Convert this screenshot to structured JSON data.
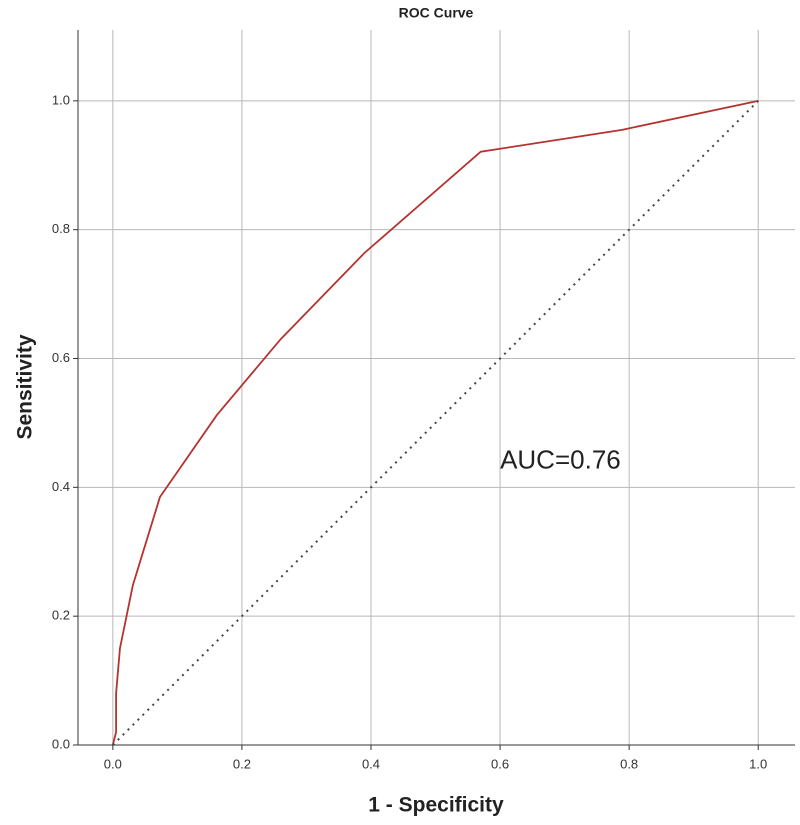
{
  "chart_data": {
    "type": "line",
    "title": "ROC Curve",
    "x_label": "1 - Specificity",
    "y_label": "Sensitivity",
    "annotation": "AUC=0.76",
    "xlim": [
      -0.054,
      1.057
    ],
    "ylim": [
      0,
      1.11
    ],
    "xticks": [
      {
        "value": 0,
        "label": "0.0"
      },
      {
        "value": 0.2,
        "label": "0.2"
      },
      {
        "value": 0.4,
        "label": "0.4"
      },
      {
        "value": 0.6,
        "label": "0.6"
      },
      {
        "value": 0.8,
        "label": "0.8"
      },
      {
        "value": 1,
        "label": "1.0"
      }
    ],
    "yticks": [
      {
        "value": 0,
        "label": "0.0"
      },
      {
        "value": 0.2,
        "label": "0.2"
      },
      {
        "value": 0.4,
        "label": "0.4"
      },
      {
        "value": 0.6,
        "label": "0.6"
      },
      {
        "value": 0.8,
        "label": "0.8"
      },
      {
        "value": 1,
        "label": "1.0"
      }
    ],
    "grid": true,
    "series": [
      {
        "color": "#b5332e",
        "dash": false,
        "x": [
          0,
          0.005,
          0.005,
          0.011,
          0.031,
          0.073,
          0.161,
          0.26,
          0.39,
          0.57,
          0.789,
          1
        ],
        "values": [
          0,
          0.02,
          0.08,
          0.15,
          0.248,
          0.385,
          0.512,
          0.63,
          0.764,
          0.921,
          0.955,
          1
        ]
      },
      {
        "color": "#444444",
        "dash": true,
        "x": [
          0,
          1
        ],
        "values": [
          0,
          1
        ]
      }
    ]
  }
}
